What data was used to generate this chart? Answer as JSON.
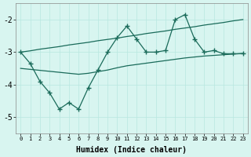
{
  "x": [
    0,
    1,
    2,
    3,
    4,
    5,
    6,
    7,
    8,
    9,
    10,
    11,
    12,
    13,
    14,
    15,
    16,
    17,
    18,
    19,
    20,
    21,
    22,
    23
  ],
  "y_main": [
    -3.0,
    -3.35,
    -3.9,
    -4.25,
    -4.75,
    -4.55,
    -4.75,
    -4.1,
    -3.55,
    -3.0,
    -2.55,
    -2.2,
    -2.6,
    -3.0,
    -3.0,
    -2.95,
    -2.0,
    -1.85,
    -2.6,
    -3.0,
    -2.95,
    -3.05,
    -3.05,
    -3.05
  ],
  "y_upper": [
    -3.0,
    -2.96,
    -2.91,
    -2.87,
    -2.83,
    -2.78,
    -2.74,
    -2.7,
    -2.65,
    -2.61,
    -2.57,
    -2.52,
    -2.48,
    -2.43,
    -2.39,
    -2.35,
    -2.3,
    -2.26,
    -2.22,
    -2.17,
    -2.13,
    -2.09,
    -2.04,
    -2.0
  ],
  "y_lower": [
    -3.5,
    -3.53,
    -3.56,
    -3.59,
    -3.62,
    -3.65,
    -3.68,
    -3.65,
    -3.6,
    -3.55,
    -3.48,
    -3.42,
    -3.38,
    -3.34,
    -3.3,
    -3.26,
    -3.22,
    -3.18,
    -3.15,
    -3.12,
    -3.1,
    -3.08,
    -3.06,
    -3.04
  ],
  "line_color": "#1a6b5a",
  "bg_color": "#d8f5f0",
  "grid_color": "#b8e8e0",
  "xlabel": "Humidex (Indice chaleur)",
  "ylim": [
    -5.5,
    -1.5
  ],
  "xlim": [
    -0.5,
    23.5
  ],
  "yticks": [
    -5,
    -4,
    -3,
    -2
  ],
  "xticks": [
    0,
    1,
    2,
    3,
    4,
    5,
    6,
    7,
    8,
    9,
    10,
    11,
    12,
    13,
    14,
    15,
    16,
    17,
    18,
    19,
    20,
    21,
    22,
    23
  ]
}
